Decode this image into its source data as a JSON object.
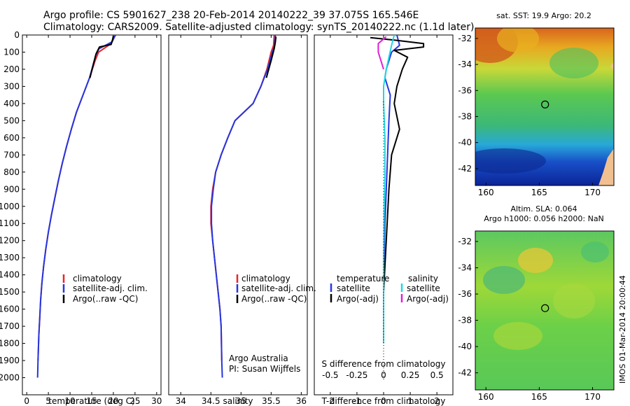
{
  "header": {
    "line1": "Argo profile: CS 5901627_238 20-Feb-2014 20140222_39 37.075S 165.546E",
    "line2": "Climatology: CARS2009. Satellite-adjusted climatology: synTS_20140222.nc (1.1d later)"
  },
  "colors": {
    "climatology": "#e8252a",
    "satellite": "#2436e0",
    "argo": "#000000",
    "sal_satellite": "#20d8e0",
    "sal_argo": "#e020d8"
  },
  "depth_axis": {
    "ticks": [
      "0",
      "100",
      "200",
      "300",
      "400",
      "500",
      "600",
      "700",
      "800",
      "900",
      "1000",
      "1100",
      "1200",
      "1300",
      "1400",
      "1500",
      "1600",
      "1700",
      "1800",
      "1900",
      "2000"
    ]
  },
  "chart_data": [
    {
      "type": "line",
      "xlabel": "temperature (deg C)",
      "xticks": [
        "0",
        "5",
        "10",
        "15",
        "20",
        "25",
        "30"
      ],
      "xlim": [
        -1,
        31
      ],
      "ylim": [
        2100,
        0
      ],
      "legend": [
        "climatology",
        "satellite-adj. clim.",
        "Argo(..raw -QC)"
      ],
      "series": [
        {
          "name": "climatology",
          "color_key": "climatology",
          "x": [
            20.2,
            19.5,
            16.6,
            15.8,
            14.5,
            13.0,
            11.5,
            10.3,
            9.2,
            8.2,
            7.3,
            6.5,
            5.7,
            5.0,
            4.4,
            3.9,
            3.5,
            3.2,
            3.0,
            2.8,
            2.6
          ],
          "y": [
            0,
            50,
            100,
            150,
            250,
            350,
            450,
            550,
            650,
            750,
            850,
            950,
            1050,
            1150,
            1250,
            1350,
            1450,
            1550,
            1650,
            1750,
            1900
          ]
        },
        {
          "name": "satellite-adj. clim.",
          "color_key": "satellite",
          "x": [
            20.5,
            19.7,
            16.7,
            15.9,
            14.5,
            13.0,
            11.5,
            10.3,
            9.2,
            8.2,
            7.3,
            6.5,
            5.7,
            5.0,
            4.4,
            3.9,
            3.5,
            3.2,
            3.0,
            2.8,
            2.6,
            2.5
          ],
          "y": [
            0,
            40,
            80,
            120,
            250,
            350,
            450,
            550,
            650,
            750,
            850,
            950,
            1050,
            1150,
            1250,
            1350,
            1450,
            1550,
            1650,
            1750,
            1900,
            2000
          ]
        },
        {
          "name": "Argo(..raw -QC)",
          "color_key": "argo",
          "x": [
            20.0,
            19.8,
            19.5,
            16.8,
            16.0,
            14.6
          ],
          "y": [
            5,
            30,
            55,
            70,
            110,
            250
          ]
        }
      ]
    },
    {
      "type": "line",
      "xlabel": "salinity",
      "xticks": [
        "34",
        "34.5",
        "35",
        "35.5",
        "36"
      ],
      "xlim": [
        33.8,
        36.1
      ],
      "ylim": [
        2100,
        0
      ],
      "legend": [
        "climatology",
        "satellite-adj. clim.",
        "Argo(..raw -QC)"
      ],
      "series": [
        {
          "name": "climatology",
          "color_key": "climatology",
          "x": [
            35.55,
            35.54,
            35.5,
            35.43,
            35.33,
            35.2,
            35.05,
            34.9,
            34.78,
            34.67,
            34.58,
            34.53,
            34.5,
            34.5,
            34.53,
            34.56,
            34.59,
            34.62,
            34.65,
            34.67,
            34.68
          ],
          "y": [
            0,
            60,
            100,
            200,
            300,
            400,
            450,
            500,
            600,
            700,
            800,
            900,
            1000,
            1100,
            1200,
            1300,
            1400,
            1500,
            1600,
            1700,
            1900
          ]
        },
        {
          "name": "satellite-adj. clim.",
          "color_key": "satellite",
          "x": [
            35.57,
            35.56,
            35.52,
            35.44,
            35.33,
            35.2,
            35.05,
            34.9,
            34.78,
            34.67,
            34.58,
            34.54,
            34.51,
            34.51,
            34.53,
            34.56,
            34.59,
            34.62,
            34.65,
            34.67,
            34.68,
            34.69
          ],
          "y": [
            0,
            60,
            100,
            200,
            300,
            400,
            450,
            500,
            600,
            700,
            800,
            900,
            1000,
            1100,
            1200,
            1300,
            1400,
            1500,
            1600,
            1700,
            1900,
            2000
          ]
        },
        {
          "name": "Argo(..raw -QC)",
          "color_key": "argo",
          "x": [
            35.58,
            35.57,
            35.55,
            35.5,
            35.42
          ],
          "y": [
            10,
            40,
            80,
            150,
            250
          ]
        }
      ]
    },
    {
      "type": "line",
      "xlabel": "T difference from climatology",
      "xlabel_top": "S difference from climatology",
      "xticks": [
        "-2",
        "-1",
        "0",
        "1",
        "2"
      ],
      "xticks_top": [
        "-0.5",
        "-0.25",
        "0",
        "0.25",
        "0.5"
      ],
      "xlim": [
        -2.6,
        2.6
      ],
      "ylim": [
        2100,
        0
      ],
      "legend_temperature": {
        "title": "temperature",
        "items": [
          "satellite",
          "Argo(-adj)"
        ]
      },
      "legend_salinity": {
        "title": "salinity",
        "items": [
          "satellite",
          "Argo(-adj)"
        ]
      },
      "series": [
        {
          "name": "temperature satellite",
          "color_key": "satellite",
          "x": [
            0.5,
            0.6,
            0.3,
            0.1,
            0.05,
            0.25,
            0.2,
            0.15,
            0.1,
            0.05,
            0.02,
            0.0,
            0.0
          ],
          "y": [
            0,
            60,
            100,
            200,
            250,
            350,
            500,
            700,
            900,
            1100,
            1300,
            1500,
            1700
          ]
        },
        {
          "name": "temperature Argo(-adj)",
          "color_key": "argo",
          "x": [
            -0.5,
            0.4,
            1.5,
            1.5,
            0.4,
            0.9,
            0.7,
            0.5,
            0.4,
            0.6,
            0.3,
            0.2,
            0.1,
            0.0,
            0.0
          ],
          "y": [
            15,
            30,
            50,
            70,
            90,
            130,
            200,
            300,
            400,
            550,
            700,
            900,
            1200,
            1500,
            1700
          ]
        },
        {
          "name": "salinity satellite",
          "color_key": "sal_satellite",
          "x": [
            0.4,
            0.3,
            0.1,
            0.0,
            0.0,
            0.05,
            0.05,
            0.02,
            0.0,
            0.0,
            0.0
          ],
          "y": [
            0,
            60,
            200,
            300,
            400,
            600,
            800,
            1000,
            1300,
            1500,
            1800
          ]
        },
        {
          "name": "salinity Argo(-adj)",
          "color_key": "sal_argo",
          "x": [
            0.1,
            -0.2,
            -0.2,
            -0.1,
            0.0
          ],
          "y": [
            10,
            50,
            100,
            150,
            200
          ]
        }
      ]
    },
    {
      "type": "heatmap",
      "title": "sat. SST: 19.9 Argo: 20.2",
      "xticks": [
        "160",
        "165",
        "170"
      ],
      "yticks": [
        "-32",
        "-34",
        "-36",
        "-38",
        "-40",
        "-42"
      ],
      "xlim": [
        159,
        172
      ],
      "ylim": [
        -43.3,
        -31.2
      ],
      "marker": {
        "lon": 165.546,
        "lat": -37.075
      }
    },
    {
      "type": "heatmap",
      "title": "Altim. SLA: 0.064",
      "subtitle": "Argo h1000: 0.056 h2000: NaN",
      "xticks": [
        "160",
        "165",
        "170"
      ],
      "yticks": [
        "-32",
        "-34",
        "-36",
        "-38",
        "-40",
        "-42"
      ],
      "xlim": [
        159,
        172
      ],
      "ylim": [
        -43.3,
        -31.2
      ],
      "marker": {
        "lon": 165.546,
        "lat": -37.075
      }
    }
  ],
  "panels": {
    "legend_left": {
      "a": "climatology",
      "b": "satellite-adj. clim.",
      "c": "Argo(..raw -QC)"
    },
    "legend_temp_title": "temperature",
    "legend_temp_a": "satellite",
    "legend_temp_b": "Argo(-adj)",
    "legend_sal_title": "salinity",
    "legend_sal_a": "satellite",
    "legend_sal_b": "Argo(-adj)",
    "credit_1": "Argo Australia",
    "credit_2": "PI: Susan Wijffels",
    "side_text": "IMOS 01-Mar-2014 20:00:44"
  }
}
